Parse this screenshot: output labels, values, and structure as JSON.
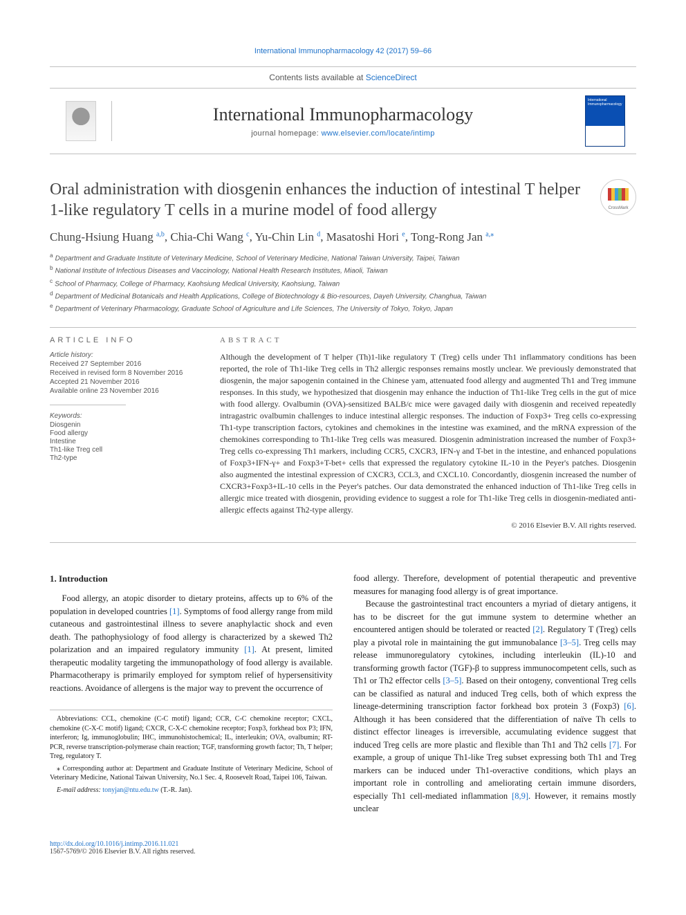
{
  "topLink": {
    "label": "International Immunopharmacology 42 (2017) 59–66",
    "href": "#"
  },
  "header": {
    "contentsLine_pre": "Contents lists available at ",
    "contentsLine_link": "ScienceDirect",
    "journalName": "International Immunopharmacology",
    "homepage_pre": "journal homepage: ",
    "homepage_link": "www.elsevier.com/locate/intimp"
  },
  "title": "Oral administration with diosgenin enhances the induction of intestinal T helper 1-like regulatory T cells in a murine model of food allergy",
  "crossmark": "CrossMark",
  "authors": [
    {
      "name": "Chung-Hsiung Huang",
      "aff": "a,b"
    },
    {
      "name": "Chia-Chi Wang",
      "aff": "c"
    },
    {
      "name": "Yu-Chin Lin",
      "aff": "d"
    },
    {
      "name": "Masatoshi Hori",
      "aff": "e"
    },
    {
      "name": "Tong-Rong Jan",
      "aff": "a,*"
    }
  ],
  "affiliations": [
    {
      "key": "a",
      "text": "Department and Graduate Institute of Veterinary Medicine, School of Veterinary Medicine, National Taiwan University, Taipei, Taiwan"
    },
    {
      "key": "b",
      "text": "National Institute of Infectious Diseases and Vaccinology, National Health Research Institutes, Miaoli, Taiwan"
    },
    {
      "key": "c",
      "text": "School of Pharmacy, College of Pharmacy, Kaohsiung Medical University, Kaohsiung, Taiwan"
    },
    {
      "key": "d",
      "text": "Department of Medicinal Botanicals and Health Applications, College of Biotechnology & Bio-resources, Dayeh University, Changhua, Taiwan"
    },
    {
      "key": "e",
      "text": "Department of Veterinary Pharmacology, Graduate School of Agriculture and Life Sciences, The University of Tokyo, Tokyo, Japan"
    }
  ],
  "articleInfoHead": "ARTICLE INFO",
  "history": {
    "label": "Article history:",
    "items": [
      "Received 27 September 2016",
      "Received in revised form 8 November 2016",
      "Accepted 21 November 2016",
      "Available online 23 November 2016"
    ]
  },
  "keywords": {
    "label": "Keywords:",
    "items": [
      "Diosgenin",
      "Food allergy",
      "Intestine",
      "Th1-like Treg cell",
      "Th2-type"
    ]
  },
  "abstractHead": "ABSTRACT",
  "abstract": "Although the development of T helper (Th)1-like regulatory T (Treg) cells under Th1 inflammatory conditions has been reported, the role of Th1-like Treg cells in Th2 allergic responses remains mostly unclear. We previously demonstrated that diosgenin, the major sapogenin contained in the Chinese yam, attenuated food allergy and augmented Th1 and Treg immune responses. In this study, we hypothesized that diosgenin may enhance the induction of Th1-like Treg cells in the gut of mice with food allergy. Ovalbumin (OVA)-sensitized BALB/c mice were gavaged daily with diosgenin and received repeatedly intragastric ovalbumin challenges to induce intestinal allergic responses. The induction of Foxp3+ Treg cells co-expressing Th1-type transcription factors, cytokines and chemokines in the intestine was examined, and the mRNA expression of the chemokines corresponding to Th1-like Treg cells was measured. Diosgenin administration increased the number of Foxp3+ Treg cells co-expressing Th1 markers, including CCR5, CXCR3, IFN-γ and T-bet in the intestine, and enhanced populations of Foxp3+IFN-γ+ and Foxp3+T-bet+ cells that expressed the regulatory cytokine IL-10 in the Peyer's patches. Diosgenin also augmented the intestinal expression of CXCR3, CCL3, and CXCL10. Concordantly, diosgenin increased the number of CXCR3+Foxp3+IL-10 cells in the Peyer's patches. Our data demonstrated the enhanced induction of Th1-like Treg cells in allergic mice treated with diosgenin, providing evidence to suggest a role for Th1-like Treg cells in diosgenin-mediated anti-allergic effects against Th2-type allergy.",
  "copyright": "© 2016 Elsevier B.V. All rights reserved.",
  "introHead": "1. Introduction",
  "introP1": "Food allergy, an atopic disorder to dietary proteins, affects up to 6% of the population in developed countries [1]. Symptoms of food allergy range from mild cutaneous and gastrointestinal illness to severe anaphylactic shock and even death. The pathophysiology of food allergy is characterized by a skewed Th2 polarization and an impaired regulatory immunity [1]. At present, limited therapeutic modality targeting the immunopathology of food allergy is available. Pharmacotherapy is primarily employed for symptom relief of hypersensitivity reactions. Avoidance of allergens is the major way to prevent the occurrence of",
  "introP2a": "food allergy. Therefore, development of potential therapeutic and preventive measures for managing food allergy is of great importance.",
  "introP2b": "Because the gastrointestinal tract encounters a myriad of dietary antigens, it has to be discreet for the gut immune system to determine whether an encountered antigen should be tolerated or reacted [2]. Regulatory T (Treg) cells play a pivotal role in maintaining the gut immunobalance [3–5]. Treg cells may release immunoregulatory cytokines, including interleukin (IL)-10 and transforming growth factor (TGF)-β to suppress immunocompetent cells, such as Th1 or Th2 effector cells [3–5]. Based on their ontogeny, conventional Treg cells can be classified as natural and induced Treg cells, both of which express the lineage-determining transcription factor forkhead box protein 3 (Foxp3) [6]. Although it has been considered that the differentiation of naïve Th cells to distinct effector lineages is irreversible, accumulating evidence suggest that induced Treg cells are more plastic and flexible than Th1 and Th2 cells [7]. For example, a group of unique Th1-like Treg subset expressing both Th1 and Treg markers can be induced under Th1-overactive conditions, which plays an important role in controlling and ameliorating certain immune disorders, especially Th1 cell-mediated inflammation [8,9]. However, it remains mostly unclear",
  "abbrev": "Abbreviations: CCL, chemokine (C-C motif) ligand; CCR, C-C chemokine receptor; CXCL, chemokine (C-X-C motif) ligand; CXCR, C-X-C chemokine receptor; Foxp3, forkhead box P3; IFN, interferon; Ig, immunoglobulin; IHC, immunohistochemical; IL, interleukin; OVA, ovalbumin; RT-PCR, reverse transcription-polymerase chain reaction; TGF, transforming growth factor; Th, T helper; Treg, regulatory T.",
  "correspondence": "⁎ Corresponding author at: Department and Graduate Institute of Veterinary Medicine, School of Veterinary Medicine, National Taiwan University, No.1 Sec. 4, Roosevelt Road, Taipei 106, Taiwan.",
  "emailLabel": "E-mail address: ",
  "email": "tonyjan@ntu.edu.tw",
  "emailWho": " (T.-R. Jan).",
  "doi": "http://dx.doi.org/10.1016/j.intimp.2016.11.021",
  "issnLine": "1567-5769/© 2016 Elsevier B.V. All rights reserved.",
  "refColor": "#1d71c9",
  "bodyTextColor": "#222222",
  "mutedColor": "#555555"
}
